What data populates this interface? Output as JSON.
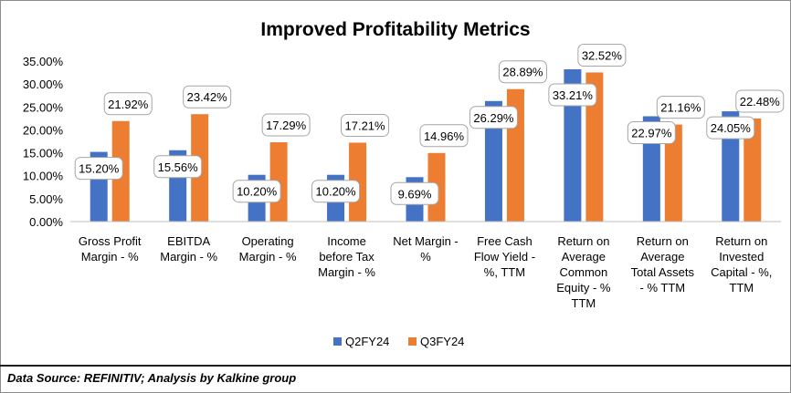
{
  "chart_data": {
    "type": "bar",
    "title": "Improved Profitability Metrics",
    "categories": [
      [
        "Gross Profit",
        "Margin - %"
      ],
      [
        "EBITDA",
        "Margin - %"
      ],
      [
        "Operating",
        "Margin - %"
      ],
      [
        "Income",
        "before Tax",
        "Margin - %"
      ],
      [
        "Net Margin -",
        "%"
      ],
      [
        "Free Cash",
        "Flow Yield -",
        "%, TTM"
      ],
      [
        "Return on",
        "Average",
        "Common",
        "Equity - %",
        "TTM"
      ],
      [
        "Return on",
        "Average",
        "Total Assets",
        "- % TTM"
      ],
      [
        "Return on",
        "Invested",
        "Capital - %,",
        "TTM"
      ]
    ],
    "series": [
      {
        "name": "Q2FY24",
        "color": "#4472c4",
        "values": [
          15.2,
          15.56,
          10.2,
          10.2,
          9.69,
          26.29,
          33.21,
          22.97,
          24.05
        ]
      },
      {
        "name": "Q3FY24",
        "color": "#ed7d31",
        "values": [
          21.92,
          23.42,
          17.29,
          17.21,
          14.96,
          28.89,
          32.52,
          21.16,
          22.48
        ]
      }
    ],
    "y_ticks": [
      "0.00%",
      "5.00%",
      "10.00%",
      "15.00%",
      "20.00%",
      "25.00%",
      "30.00%",
      "35.00%"
    ],
    "ylim": [
      0,
      35
    ],
    "grid": false,
    "legend_position": "bottom"
  },
  "source_note": "Data Source: REFINITIV; Analysis by Kalkine group"
}
